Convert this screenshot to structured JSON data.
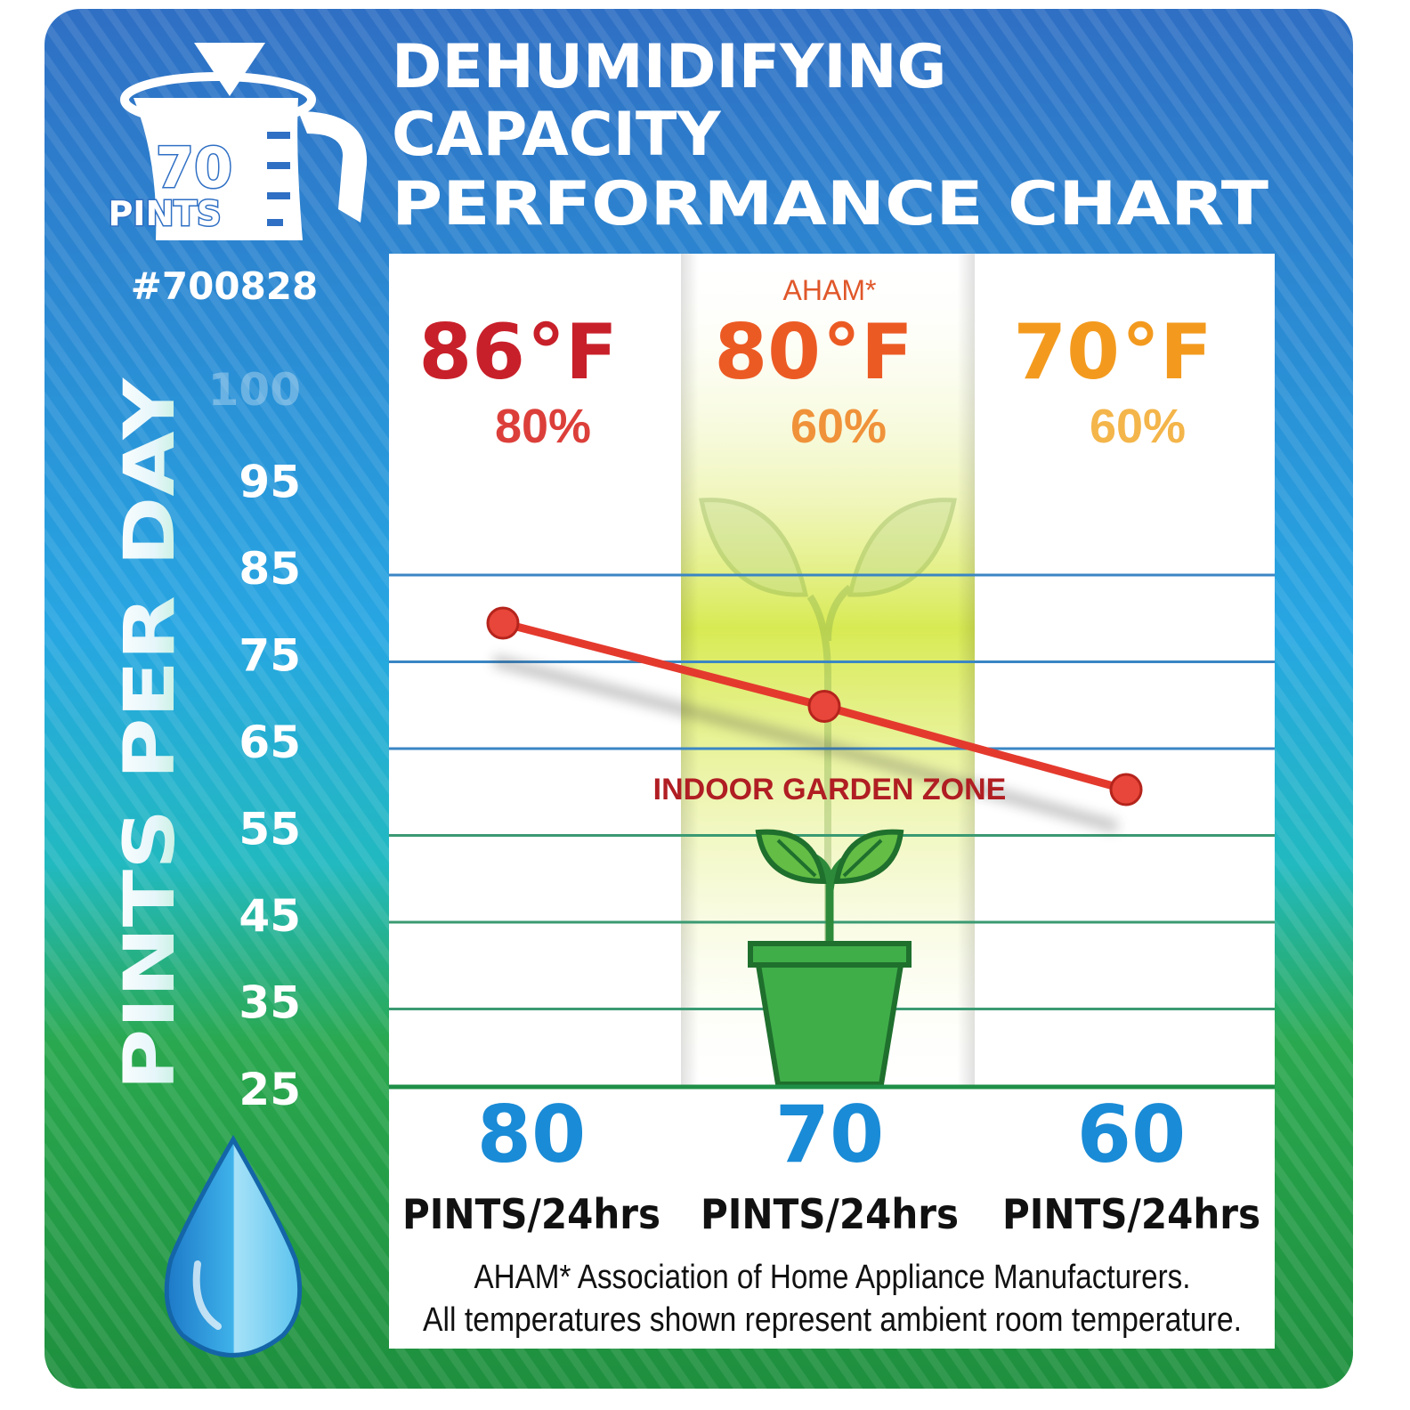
{
  "title_lines": [
    "DEHUMIDIFYING",
    "CAPACITY",
    "PERFORMANCE CHART"
  ],
  "badge": {
    "number": "70",
    "unit": "PINTS",
    "model": "#700828"
  },
  "y_axis_label": "PINTS PER DAY",
  "zone_label": "INDOOR GARDEN ZONE",
  "aham_tag": "AHAM*",
  "footnote_lines": [
    "AHAM* Association of Home Appliance Manufacturers.",
    "All temperatures shown represent ambient room temperature."
  ],
  "conditions": [
    {
      "temp": "86",
      "deg": "°F",
      "humidity": "80%",
      "temp_color": "#c8202a",
      "hum_color": "#dc3f3a"
    },
    {
      "temp": "80",
      "deg": "°F",
      "humidity": "60%",
      "temp_color": "#ec5a24",
      "hum_color": "#f0923a"
    },
    {
      "temp": "70",
      "deg": "°F",
      "humidity": "60%",
      "temp_color": "#f39a1e",
      "hum_color": "#f4b54a"
    }
  ],
  "results": [
    {
      "value": "80",
      "unit": "PINTS/24hrs"
    },
    {
      "value": "70",
      "unit": "PINTS/24hrs"
    },
    {
      "value": "60",
      "unit": "PINTS/24hrs"
    }
  ],
  "colors": {
    "bg_top": "#2e78c8",
    "bg_mid": "#26a3e0",
    "bg_bottom": "#1f9a48",
    "line": "#e43a2e",
    "value_blue": "#1a8bd6",
    "zone_glow": "#d6e94a",
    "pot_green": "#3fae49",
    "zone_text": "#b01e23"
  },
  "icons": [
    "measuring-cup-icon",
    "water-drop-icon",
    "sprout-icon",
    "potted-plant-icon"
  ],
  "chart_data": {
    "type": "line",
    "title": "DEHUMIDIFYING CAPACITY PERFORMANCE CHART",
    "ylabel": "PINTS PER DAY",
    "xlabel": "",
    "y_ticks": [
      100,
      95,
      85,
      75,
      65,
      55,
      45,
      35,
      25
    ],
    "ylim": [
      25,
      100
    ],
    "grid": true,
    "categories": [
      "86°F 80%",
      "80°F 60%",
      "70°F 60%"
    ],
    "series": [
      {
        "values": [
          80,
          70,
          60
        ]
      }
    ]
  }
}
